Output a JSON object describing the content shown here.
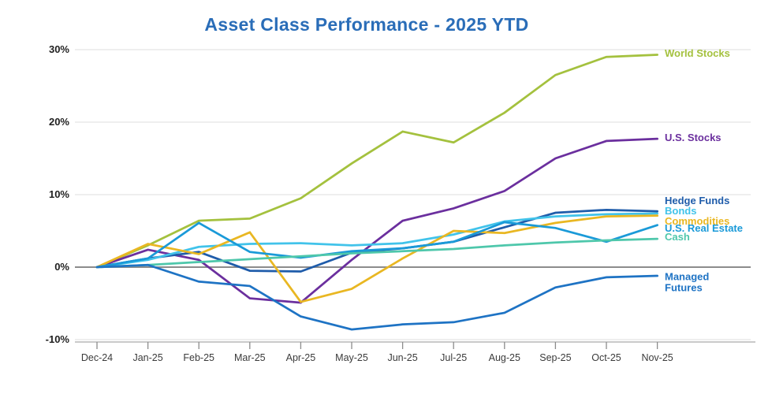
{
  "chart": {
    "title": "Asset Class Performance - 2025 YTD",
    "title_color": "#2a6db8"
  },
  "chart_data": {
    "type": "line",
    "title": "Asset Class Performance - 2025 YTD",
    "xlabel": "",
    "ylabel": "",
    "unit": "%",
    "ylim": [
      -10,
      30
    ],
    "grid": "horizontal",
    "legend_position": "inline-right-labels",
    "x_labels": [
      "Dec-24",
      "Jan-25",
      "Feb-25",
      "Mar-25",
      "Apr-25",
      "May-25",
      "Jun-25",
      "Jul-25",
      "Aug-25",
      "Sep-25",
      "Oct-25",
      "Nov-25"
    ],
    "y_ticks": [
      {
        "label": "30%",
        "value": 30
      },
      {
        "label": "20%",
        "value": 20
      },
      {
        "label": "10%",
        "value": 10
      },
      {
        "label": "0%",
        "value": 0
      },
      {
        "label": "-10%",
        "value": -10
      }
    ],
    "series": [
      {
        "name": "World Stocks",
        "color": "#a4c13e",
        "values": [
          0,
          3.0,
          6.4,
          6.7,
          9.5,
          14.3,
          18.7,
          17.2,
          21.3,
          26.5,
          29.0,
          29.3
        ]
      },
      {
        "name": "U.S. Stocks",
        "color": "#6b2f9e",
        "values": [
          0,
          2.4,
          1.0,
          -4.3,
          -4.9,
          1.0,
          6.4,
          8.1,
          10.5,
          15.0,
          17.4,
          17.7
        ]
      },
      {
        "name": "Hedge Funds",
        "color": "#1f5caa",
        "values": [
          0,
          1.2,
          2.1,
          -0.5,
          -0.6,
          2.0,
          2.6,
          3.5,
          5.5,
          7.5,
          7.9,
          7.7
        ]
      },
      {
        "name": "Bonds",
        "color": "#41c3ea",
        "values": [
          0,
          1.0,
          2.8,
          3.2,
          3.3,
          3.0,
          3.3,
          4.5,
          6.3,
          7.0,
          7.3,
          7.4
        ]
      },
      {
        "name": "Commodities",
        "color": "#e9b722",
        "values": [
          0,
          3.2,
          1.8,
          4.8,
          -4.8,
          -3.0,
          1.2,
          5.0,
          4.7,
          6.1,
          7.0,
          7.1
        ]
      },
      {
        "name": "U.S. Real Estate",
        "color": "#1a9ad8",
        "values": [
          0,
          1.2,
          6.1,
          2.1,
          1.3,
          2.2,
          2.6,
          3.5,
          6.2,
          5.4,
          3.5,
          5.8
        ]
      },
      {
        "name": "Cash",
        "color": "#4ec7ab",
        "values": [
          0,
          0.3,
          0.7,
          1.1,
          1.5,
          1.9,
          2.2,
          2.5,
          3.0,
          3.4,
          3.7,
          3.9
        ]
      },
      {
        "name": "Managed Futures",
        "color": "#1e73c4",
        "values": [
          0,
          0.3,
          -2.0,
          -2.6,
          -6.8,
          -8.6,
          -7.9,
          -7.6,
          -6.3,
          -2.8,
          -1.4,
          -1.2
        ]
      }
    ]
  },
  "axis_style": {
    "gridline_color": "#dcdcdc",
    "zero_line_color": "#8c8c8c",
    "baseline_color": "#c9c9c9",
    "tick_color": "#8c8c8c"
  }
}
